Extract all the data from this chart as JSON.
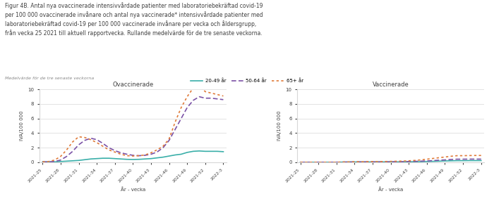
{
  "title_text": "Figur 4B. Antal nya ovaccinerade intensivvårdade patienter med laboratoriebekräftad covid-19\nper 100 000 ovaccinerade invånare och antal nya vaccinerade* intensivvårdade patienter med\nlaboratoriebekräftad covid-19 per 100 000 vaccinerade invånare per vecka och åldersgrupp,\nfrån vecka 25 2021 till aktuell rapportvecka. Rullande medelvärde för de tre senaste veckorna.",
  "legend_note": "Medelvärde för de tre senaste veckorna",
  "legend_entries": [
    "20-49 år",
    "50-64 år",
    "65+ år"
  ],
  "x_labels": [
    "2021-25",
    "2021-28",
    "2021-31",
    "2021-34",
    "2021-37",
    "2021-40",
    "2021-43",
    "2021-46",
    "2021-49",
    "2021-52",
    "2022-3"
  ],
  "tick_positions": [
    0,
    3,
    6,
    9,
    12,
    15,
    18,
    21,
    24,
    27,
    30
  ],
  "xlabel": "År - vecka",
  "ylabel": "IVA/100 000",
  "ylim": [
    0,
    10
  ],
  "yticks": [
    0,
    2,
    4,
    6,
    8,
    10
  ],
  "left_title": "Ovaccinerade",
  "right_title": "Vaccinerade",
  "unvacc_20_49": [
    0.05,
    0.05,
    0.05,
    0.1,
    0.15,
    0.2,
    0.25,
    0.35,
    0.45,
    0.5,
    0.55,
    0.55,
    0.5,
    0.45,
    0.4,
    0.38,
    0.4,
    0.45,
    0.5,
    0.6,
    0.7,
    0.85,
    1.0,
    1.1,
    1.35,
    1.5,
    1.55,
    1.5,
    1.5,
    1.5,
    1.45
  ],
  "unvacc_50_64": [
    0.05,
    0.05,
    0.1,
    0.3,
    0.8,
    1.5,
    2.4,
    3.0,
    3.3,
    3.1,
    2.6,
    2.0,
    1.6,
    1.3,
    1.1,
    0.95,
    0.9,
    0.95,
    1.1,
    1.4,
    2.0,
    3.0,
    4.5,
    6.0,
    7.5,
    8.5,
    9.0,
    8.8,
    8.8,
    8.7,
    8.6
  ],
  "unvacc_65p": [
    0.05,
    0.1,
    0.3,
    0.8,
    1.7,
    2.8,
    3.5,
    3.4,
    3.1,
    2.7,
    2.2,
    1.7,
    1.4,
    1.1,
    0.9,
    0.85,
    0.9,
    1.0,
    1.3,
    1.7,
    2.2,
    3.2,
    5.5,
    7.5,
    9.0,
    10.2,
    10.5,
    9.7,
    9.5,
    9.3,
    9.1
  ],
  "vacc_20_49": [
    0.0,
    0.0,
    0.0,
    0.0,
    0.0,
    0.0,
    0.0,
    0.02,
    0.03,
    0.04,
    0.04,
    0.04,
    0.04,
    0.04,
    0.05,
    0.05,
    0.05,
    0.05,
    0.06,
    0.07,
    0.08,
    0.1,
    0.12,
    0.15,
    0.18,
    0.2,
    0.22,
    0.22,
    0.23,
    0.23,
    0.23
  ],
  "vacc_50_64": [
    0.0,
    0.0,
    0.0,
    0.0,
    0.0,
    0.0,
    0.0,
    0.02,
    0.03,
    0.04,
    0.05,
    0.05,
    0.05,
    0.05,
    0.05,
    0.06,
    0.07,
    0.08,
    0.1,
    0.12,
    0.15,
    0.18,
    0.22,
    0.28,
    0.32,
    0.38,
    0.42,
    0.42,
    0.43,
    0.43,
    0.43
  ],
  "vacc_65p": [
    0.0,
    0.0,
    0.0,
    0.0,
    0.0,
    0.0,
    0.0,
    0.03,
    0.05,
    0.06,
    0.07,
    0.08,
    0.09,
    0.1,
    0.1,
    0.12,
    0.14,
    0.16,
    0.2,
    0.25,
    0.32,
    0.42,
    0.52,
    0.62,
    0.72,
    0.82,
    0.9,
    0.9,
    0.92,
    0.93,
    0.93
  ],
  "bg_color": "#ffffff",
  "grid_color": "#d8d8d8",
  "text_color": "#404040",
  "line_color_teal": "#3aafa9",
  "line_color_purple": "#7b52a6",
  "line_color_orange": "#e07b3a"
}
